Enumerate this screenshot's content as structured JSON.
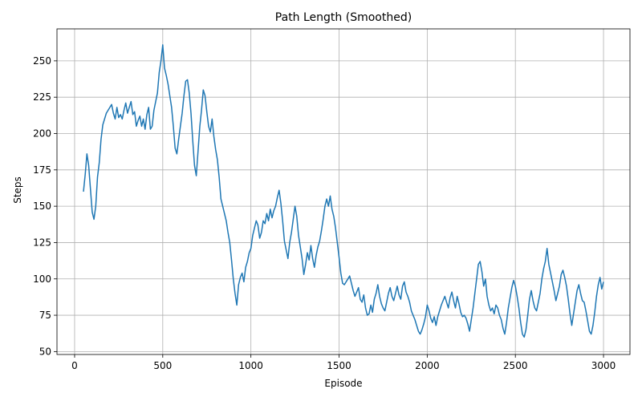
{
  "chart_data": {
    "type": "line",
    "title": "Path Length (Smoothed)",
    "xlabel": "Episode",
    "ylabel": "Steps",
    "xlim": [
      -100,
      3150
    ],
    "ylim": [
      48,
      272
    ],
    "xticks": [
      0,
      500,
      1000,
      1500,
      2000,
      2500,
      3000
    ],
    "yticks": [
      50,
      75,
      100,
      125,
      150,
      175,
      200,
      225,
      250
    ],
    "grid": true,
    "line_color": "#1f77b4",
    "series": [
      {
        "name": "",
        "points": [
          [
            50,
            160
          ],
          [
            60,
            172
          ],
          [
            70,
            186
          ],
          [
            80,
            178
          ],
          [
            90,
            162
          ],
          [
            100,
            146
          ],
          [
            110,
            141
          ],
          [
            120,
            150
          ],
          [
            130,
            170
          ],
          [
            140,
            180
          ],
          [
            150,
            196
          ],
          [
            160,
            206
          ],
          [
            170,
            210
          ],
          [
            180,
            214
          ],
          [
            190,
            216
          ],
          [
            200,
            218
          ],
          [
            210,
            220
          ],
          [
            220,
            214
          ],
          [
            230,
            210
          ],
          [
            240,
            218
          ],
          [
            250,
            211
          ],
          [
            260,
            213
          ],
          [
            270,
            210
          ],
          [
            280,
            216
          ],
          [
            290,
            221
          ],
          [
            300,
            214
          ],
          [
            310,
            218
          ],
          [
            320,
            222
          ],
          [
            330,
            213
          ],
          [
            340,
            215
          ],
          [
            350,
            205
          ],
          [
            360,
            209
          ],
          [
            370,
            212
          ],
          [
            380,
            205
          ],
          [
            390,
            210
          ],
          [
            400,
            203
          ],
          [
            410,
            213
          ],
          [
            420,
            218
          ],
          [
            430,
            203
          ],
          [
            440,
            205
          ],
          [
            450,
            216
          ],
          [
            460,
            222
          ],
          [
            470,
            228
          ],
          [
            480,
            242
          ],
          [
            490,
            250
          ],
          [
            500,
            261
          ],
          [
            510,
            245
          ],
          [
            520,
            240
          ],
          [
            530,
            234
          ],
          [
            540,
            226
          ],
          [
            550,
            218
          ],
          [
            560,
            205
          ],
          [
            570,
            190
          ],
          [
            580,
            186
          ],
          [
            590,
            196
          ],
          [
            600,
            205
          ],
          [
            610,
            214
          ],
          [
            620,
            226
          ],
          [
            630,
            236
          ],
          [
            640,
            237
          ],
          [
            650,
            228
          ],
          [
            660,
            214
          ],
          [
            670,
            195
          ],
          [
            680,
            178
          ],
          [
            690,
            171
          ],
          [
            700,
            188
          ],
          [
            710,
            205
          ],
          [
            720,
            216
          ],
          [
            730,
            230
          ],
          [
            740,
            226
          ],
          [
            750,
            215
          ],
          [
            760,
            205
          ],
          [
            770,
            201
          ],
          [
            780,
            210
          ],
          [
            790,
            198
          ],
          [
            800,
            189
          ],
          [
            810,
            182
          ],
          [
            820,
            170
          ],
          [
            830,
            155
          ],
          [
            840,
            150
          ],
          [
            850,
            145
          ],
          [
            860,
            140
          ],
          [
            870,
            132
          ],
          [
            880,
            125
          ],
          [
            890,
            113
          ],
          [
            900,
            100
          ],
          [
            910,
            90
          ],
          [
            920,
            82
          ],
          [
            930,
            96
          ],
          [
            940,
            101
          ],
          [
            950,
            104
          ],
          [
            960,
            98
          ],
          [
            970,
            108
          ],
          [
            980,
            112
          ],
          [
            990,
            118
          ],
          [
            1000,
            121
          ],
          [
            1010,
            130
          ],
          [
            1020,
            135
          ],
          [
            1030,
            140
          ],
          [
            1040,
            137
          ],
          [
            1050,
            128
          ],
          [
            1060,
            132
          ],
          [
            1070,
            140
          ],
          [
            1080,
            138
          ],
          [
            1090,
            145
          ],
          [
            1100,
            140
          ],
          [
            1110,
            148
          ],
          [
            1120,
            142
          ],
          [
            1130,
            147
          ],
          [
            1140,
            150
          ],
          [
            1150,
            156
          ],
          [
            1160,
            161
          ],
          [
            1170,
            152
          ],
          [
            1180,
            140
          ],
          [
            1190,
            126
          ],
          [
            1200,
            120
          ],
          [
            1210,
            114
          ],
          [
            1220,
            125
          ],
          [
            1230,
            132
          ],
          [
            1240,
            141
          ],
          [
            1250,
            150
          ],
          [
            1260,
            143
          ],
          [
            1270,
            130
          ],
          [
            1280,
            122
          ],
          [
            1290,
            114
          ],
          [
            1300,
            103
          ],
          [
            1310,
            110
          ],
          [
            1320,
            118
          ],
          [
            1330,
            113
          ],
          [
            1340,
            123
          ],
          [
            1350,
            114
          ],
          [
            1360,
            108
          ],
          [
            1370,
            116
          ],
          [
            1380,
            122
          ],
          [
            1390,
            126
          ],
          [
            1400,
            133
          ],
          [
            1410,
            141
          ],
          [
            1420,
            150
          ],
          [
            1430,
            155
          ],
          [
            1440,
            150
          ],
          [
            1450,
            157
          ],
          [
            1460,
            148
          ],
          [
            1470,
            143
          ],
          [
            1480,
            135
          ],
          [
            1490,
            125
          ],
          [
            1500,
            115
          ],
          [
            1510,
            104
          ],
          [
            1520,
            97
          ],
          [
            1530,
            96
          ],
          [
            1540,
            98
          ],
          [
            1550,
            100
          ],
          [
            1560,
            102
          ],
          [
            1570,
            97
          ],
          [
            1580,
            92
          ],
          [
            1590,
            88
          ],
          [
            1600,
            91
          ],
          [
            1610,
            94
          ],
          [
            1620,
            86
          ],
          [
            1630,
            84
          ],
          [
            1640,
            89
          ],
          [
            1650,
            80
          ],
          [
            1660,
            75
          ],
          [
            1670,
            76
          ],
          [
            1680,
            82
          ],
          [
            1690,
            77
          ],
          [
            1700,
            86
          ],
          [
            1710,
            90
          ],
          [
            1720,
            96
          ],
          [
            1730,
            88
          ],
          [
            1740,
            83
          ],
          [
            1750,
            80
          ],
          [
            1760,
            78
          ],
          [
            1770,
            84
          ],
          [
            1780,
            90
          ],
          [
            1790,
            94
          ],
          [
            1800,
            88
          ],
          [
            1810,
            85
          ],
          [
            1820,
            90
          ],
          [
            1830,
            95
          ],
          [
            1840,
            89
          ],
          [
            1850,
            86
          ],
          [
            1860,
            95
          ],
          [
            1870,
            98
          ],
          [
            1880,
            91
          ],
          [
            1890,
            88
          ],
          [
            1900,
            84
          ],
          [
            1910,
            78
          ],
          [
            1920,
            75
          ],
          [
            1930,
            72
          ],
          [
            1940,
            68
          ],
          [
            1950,
            64
          ],
          [
            1960,
            62
          ],
          [
            1970,
            65
          ],
          [
            1980,
            69
          ],
          [
            1990,
            74
          ],
          [
            2000,
            82
          ],
          [
            2010,
            78
          ],
          [
            2020,
            73
          ],
          [
            2030,
            70
          ],
          [
            2040,
            74
          ],
          [
            2050,
            68
          ],
          [
            2060,
            74
          ],
          [
            2070,
            78
          ],
          [
            2080,
            82
          ],
          [
            2090,
            85
          ],
          [
            2100,
            88
          ],
          [
            2110,
            84
          ],
          [
            2120,
            80
          ],
          [
            2130,
            87
          ],
          [
            2140,
            91
          ],
          [
            2150,
            85
          ],
          [
            2160,
            80
          ],
          [
            2170,
            88
          ],
          [
            2180,
            83
          ],
          [
            2190,
            77
          ],
          [
            2200,
            74
          ],
          [
            2210,
            75
          ],
          [
            2220,
            73
          ],
          [
            2230,
            69
          ],
          [
            2240,
            64
          ],
          [
            2250,
            72
          ],
          [
            2260,
            80
          ],
          [
            2270,
            90
          ],
          [
            2280,
            100
          ],
          [
            2290,
            110
          ],
          [
            2300,
            112
          ],
          [
            2310,
            105
          ],
          [
            2320,
            95
          ],
          [
            2330,
            100
          ],
          [
            2340,
            88
          ],
          [
            2350,
            82
          ],
          [
            2360,
            78
          ],
          [
            2370,
            80
          ],
          [
            2380,
            76
          ],
          [
            2390,
            82
          ],
          [
            2400,
            80
          ],
          [
            2410,
            75
          ],
          [
            2420,
            72
          ],
          [
            2430,
            66
          ],
          [
            2440,
            62
          ],
          [
            2450,
            70
          ],
          [
            2460,
            80
          ],
          [
            2470,
            87
          ],
          [
            2480,
            94
          ],
          [
            2490,
            99
          ],
          [
            2500,
            95
          ],
          [
            2510,
            88
          ],
          [
            2520,
            80
          ],
          [
            2530,
            70
          ],
          [
            2540,
            62
          ],
          [
            2550,
            60
          ],
          [
            2560,
            65
          ],
          [
            2570,
            75
          ],
          [
            2580,
            86
          ],
          [
            2590,
            92
          ],
          [
            2600,
            85
          ],
          [
            2610,
            80
          ],
          [
            2620,
            78
          ],
          [
            2630,
            84
          ],
          [
            2640,
            90
          ],
          [
            2650,
            100
          ],
          [
            2660,
            107
          ],
          [
            2670,
            112
          ],
          [
            2680,
            121
          ],
          [
            2690,
            110
          ],
          [
            2700,
            104
          ],
          [
            2710,
            98
          ],
          [
            2720,
            92
          ],
          [
            2730,
            85
          ],
          [
            2740,
            90
          ],
          [
            2750,
            95
          ],
          [
            2760,
            103
          ],
          [
            2770,
            106
          ],
          [
            2780,
            101
          ],
          [
            2790,
            95
          ],
          [
            2800,
            86
          ],
          [
            2810,
            76
          ],
          [
            2820,
            68
          ],
          [
            2830,
            76
          ],
          [
            2840,
            84
          ],
          [
            2850,
            92
          ],
          [
            2860,
            96
          ],
          [
            2870,
            90
          ],
          [
            2880,
            85
          ],
          [
            2890,
            84
          ],
          [
            2900,
            78
          ],
          [
            2910,
            71
          ],
          [
            2920,
            64
          ],
          [
            2930,
            62
          ],
          [
            2940,
            68
          ],
          [
            2950,
            77
          ],
          [
            2960,
            88
          ],
          [
            2970,
            96
          ],
          [
            2980,
            101
          ],
          [
            2990,
            93
          ],
          [
            3000,
            98
          ]
        ]
      }
    ]
  }
}
